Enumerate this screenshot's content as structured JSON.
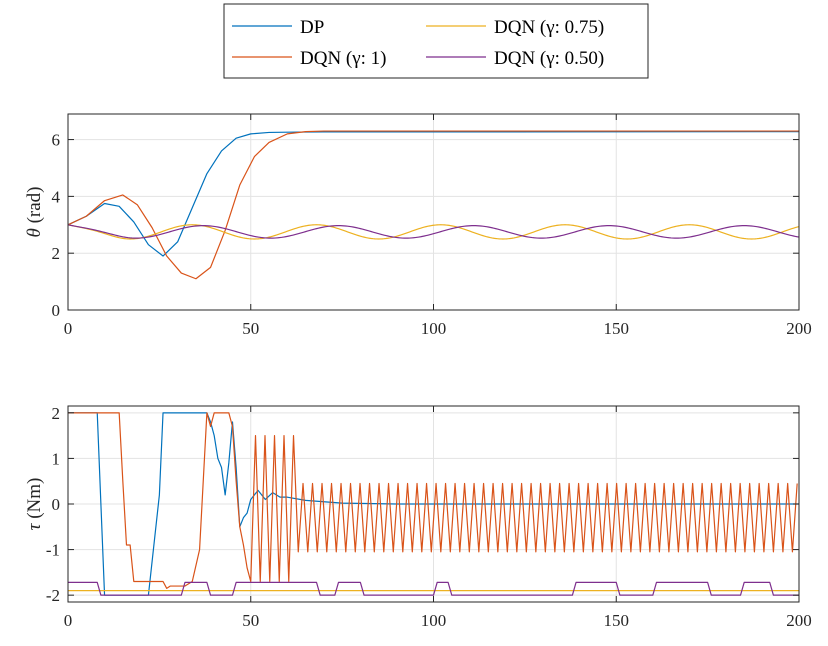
{
  "legend": [
    {
      "label": "DP",
      "color": "#0072BD"
    },
    {
      "label": "DQN (γ: 1)",
      "color": "#D95319"
    },
    {
      "label": "DQN (γ: 0.75)",
      "color": "#EDB120"
    },
    {
      "label": "DQN (γ: 0.50)",
      "color": "#7E2F8E"
    }
  ],
  "chart_data": [
    {
      "type": "line",
      "xlim": [
        0,
        200
      ],
      "ylim": [
        0,
        6.9
      ],
      "xticks": [
        "0",
        "50",
        "100",
        "150",
        "200"
      ],
      "yticks": [
        "0",
        "2",
        "4",
        "6"
      ],
      "ylabel_symbol": "θ",
      "ylabel_unit": "(rad)",
      "grid": true,
      "series": [
        {
          "name": "DP",
          "x": [
            0,
            5,
            10,
            14,
            18,
            22,
            26,
            30,
            34,
            38,
            42,
            46,
            50,
            55,
            60,
            70,
            100,
            200
          ],
          "y": [
            3.0,
            3.3,
            3.75,
            3.65,
            3.1,
            2.3,
            1.9,
            2.4,
            3.6,
            4.8,
            5.6,
            6.05,
            6.2,
            6.25,
            6.26,
            6.27,
            6.27,
            6.28
          ]
        },
        {
          "name": "DQN (γ: 1)",
          "x": [
            0,
            5,
            10,
            15,
            19,
            23,
            27,
            31,
            35,
            39,
            43,
            47,
            51,
            55,
            60,
            65,
            70,
            100,
            200
          ],
          "y": [
            3.0,
            3.3,
            3.85,
            4.05,
            3.7,
            2.9,
            1.9,
            1.3,
            1.1,
            1.5,
            2.8,
            4.4,
            5.4,
            5.9,
            6.2,
            6.28,
            6.3,
            6.3,
            6.3
          ]
        },
        {
          "name": "DQN (γ: 0.75)",
          "period": 34,
          "phase": 0,
          "center": 2.75,
          "amp": 0.25,
          "start": 3.0
        },
        {
          "name": "DQN (γ: 0.50)",
          "period": 37,
          "phase": 0,
          "center": 2.75,
          "amp": 0.22,
          "start": 3.0
        }
      ]
    },
    {
      "type": "line",
      "xlim": [
        0,
        200
      ],
      "ylim": [
        -2.15,
        2.15
      ],
      "xticks": [
        "0",
        "50",
        "100",
        "150",
        "200"
      ],
      "yticks": [
        "-2",
        "-1",
        "0",
        "1",
        "2"
      ],
      "ylabel_symbol": "τ",
      "ylabel_unit": "(Nm)",
      "grid": true,
      "series": [
        {
          "name": "DP",
          "x": [
            0,
            8,
            10,
            22,
            25,
            26,
            38,
            39,
            40,
            41,
            42,
            43,
            44,
            45,
            46,
            47,
            48,
            49,
            50,
            52,
            54,
            56,
            58,
            60,
            65,
            75,
            90,
            200
          ],
          "y": [
            2,
            2,
            -2,
            -2,
            0.2,
            2,
            2,
            1.8,
            1.5,
            1.0,
            0.8,
            0.2,
            0.9,
            1.8,
            0.8,
            -0.5,
            -0.3,
            -0.2,
            0.1,
            0.3,
            0.1,
            0.25,
            0.15,
            0.15,
            0.08,
            0.02,
            0.0,
            0.0
          ]
        },
        {
          "name": "DQN (γ: 1)",
          "x": [
            0,
            14,
            15,
            16,
            17,
            18,
            26,
            27,
            28,
            32,
            34,
            36,
            38,
            39,
            40,
            42,
            44,
            45,
            46,
            47,
            48,
            49,
            50
          ],
          "y": [
            2,
            2,
            0.5,
            -0.9,
            -0.9,
            -1.7,
            -1.7,
            -1.85,
            -1.8,
            -1.8,
            -1.7,
            -1.0,
            2.0,
            1.7,
            2.0,
            2.0,
            2.0,
            1.7,
            0.5,
            -0.5,
            -0.9,
            -1.4,
            -1.7
          ],
          "osc_start": 50,
          "osc_period": 2.6,
          "osc_high": 0.45,
          "osc_low": -1.05
        },
        {
          "name": "DQN (γ: 0.75)",
          "x": [
            0,
            200
          ],
          "y": [
            -1.9,
            -1.9
          ]
        },
        {
          "name": "DQN (γ: 0.50)",
          "x": [
            0,
            8,
            9,
            31,
            32,
            38,
            39,
            45,
            46,
            68,
            69,
            73,
            74,
            80,
            81,
            100,
            101,
            104,
            105,
            138,
            139,
            150,
            151,
            160,
            161,
            175,
            176,
            184,
            185,
            192,
            193,
            200
          ],
          "y": [
            -1.72,
            -1.72,
            -2.0,
            -2.0,
            -1.72,
            -1.72,
            -2.0,
            -2.0,
            -1.72,
            -1.72,
            -2.0,
            -2.0,
            -1.72,
            -1.72,
            -2.0,
            -2.0,
            -1.72,
            -1.72,
            -2.0,
            -2.0,
            -1.72,
            -1.72,
            -2.0,
            -2.0,
            -1.72,
            -1.72,
            -2.0,
            -2.0,
            -1.72,
            -1.72,
            -2.0,
            -2.0
          ]
        }
      ]
    }
  ]
}
